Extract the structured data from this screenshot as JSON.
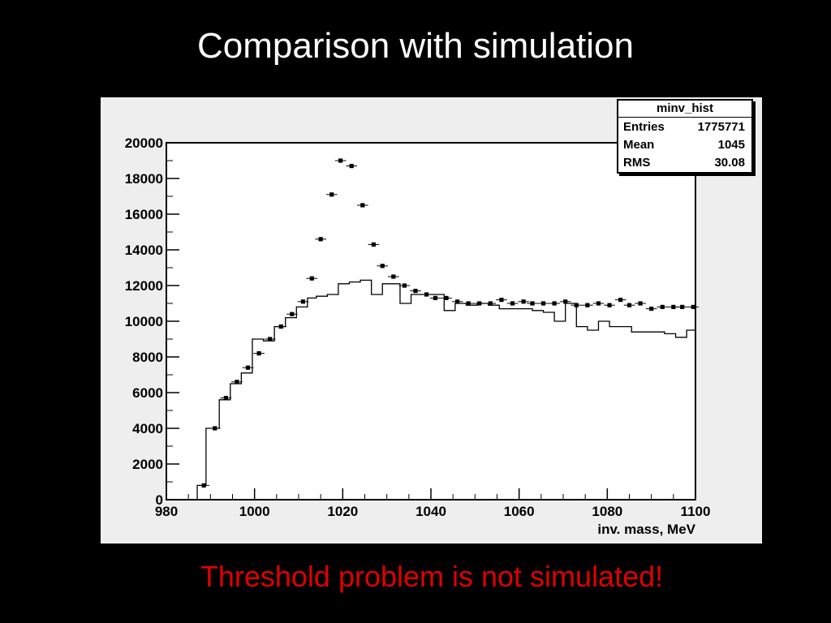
{
  "slide": {
    "title": "Comparison with simulation",
    "caption": "Threshold problem is not simulated!"
  },
  "colors": {
    "background": "#000000",
    "title": "#ffffff",
    "caption": "#e00000",
    "plot_frame": "#eeeeee"
  },
  "stats": {
    "name": "minv_hist",
    "entries_label": "Entries",
    "entries_value": "1775771",
    "mean_label": "Mean",
    "mean_value": "1045",
    "rms_label": "RMS",
    "rms_value": "30.08"
  },
  "chart_data": {
    "type": "scatter",
    "xlabel": "inv. mass, MeV",
    "ylabel": "",
    "xlim": [
      980,
      1100
    ],
    "ylim": [
      0,
      20000
    ],
    "x_ticks": [
      980,
      1000,
      1020,
      1040,
      1060,
      1080,
      1100
    ],
    "y_ticks": [
      0,
      2000,
      4000,
      6000,
      8000,
      10000,
      12000,
      14000,
      16000,
      18000,
      20000
    ],
    "bin_width": 2.5,
    "series": [
      {
        "style": "points-with-errors",
        "x": [
          988.5,
          991,
          993.5,
          996,
          998.5,
          1001,
          1003.5,
          1006,
          1008.5,
          1011,
          1013,
          1015,
          1017.5,
          1019.5,
          1022,
          1024.5,
          1027,
          1029,
          1031.5,
          1034,
          1036.5,
          1039,
          1041,
          1043.5,
          1046,
          1048.5,
          1051,
          1053.5,
          1056,
          1058.5,
          1061,
          1063,
          1065.5,
          1068,
          1070.5,
          1073,
          1075.5,
          1078,
          1080.5,
          1083,
          1085,
          1087.5,
          1090,
          1092.5,
          1095,
          1097,
          1099.5
        ],
        "y": [
          800,
          4000,
          5700,
          6600,
          7400,
          8200,
          9000,
          9700,
          10400,
          11100,
          12400,
          14600,
          17100,
          19000,
          18700,
          16500,
          14300,
          13100,
          12500,
          12000,
          11700,
          11500,
          11300,
          11300,
          11100,
          11000,
          11000,
          11000,
          11200,
          11000,
          11100,
          11000,
          11000,
          11000,
          11100,
          10900,
          10900,
          11000,
          10900,
          11200,
          10900,
          11000,
          10700,
          10800,
          10800,
          10800,
          10800
        ]
      },
      {
        "style": "step",
        "x": [
          980,
          987,
          989,
          992,
          994.5,
          997,
          999.5,
          1002,
          1004.5,
          1007,
          1009.5,
          1012,
          1014,
          1016.5,
          1019,
          1021.5,
          1024,
          1026.5,
          1029,
          1033,
          1035.5,
          1038,
          1040.5,
          1043,
          1045.5,
          1048,
          1050.5,
          1053,
          1055.5,
          1058,
          1060.5,
          1063,
          1065.5,
          1068,
          1070.5,
          1073,
          1075.5,
          1078,
          1080.5,
          1083,
          1085.5,
          1088,
          1090.5,
          1093,
          1095.5,
          1098
        ],
        "y": [
          0,
          800,
          4000,
          5600,
          6500,
          7100,
          9000,
          8900,
          9700,
          10200,
          10800,
          11300,
          11400,
          11500,
          12100,
          12200,
          12300,
          11500,
          12100,
          11000,
          11500,
          11500,
          11500,
          10600,
          11000,
          10900,
          11000,
          10900,
          10700,
          10700,
          10700,
          10600,
          10500,
          10000,
          11000,
          9700,
          9500,
          10000,
          9700,
          9700,
          9400,
          9400,
          9400,
          9300,
          9100,
          9500
        ]
      }
    ]
  }
}
